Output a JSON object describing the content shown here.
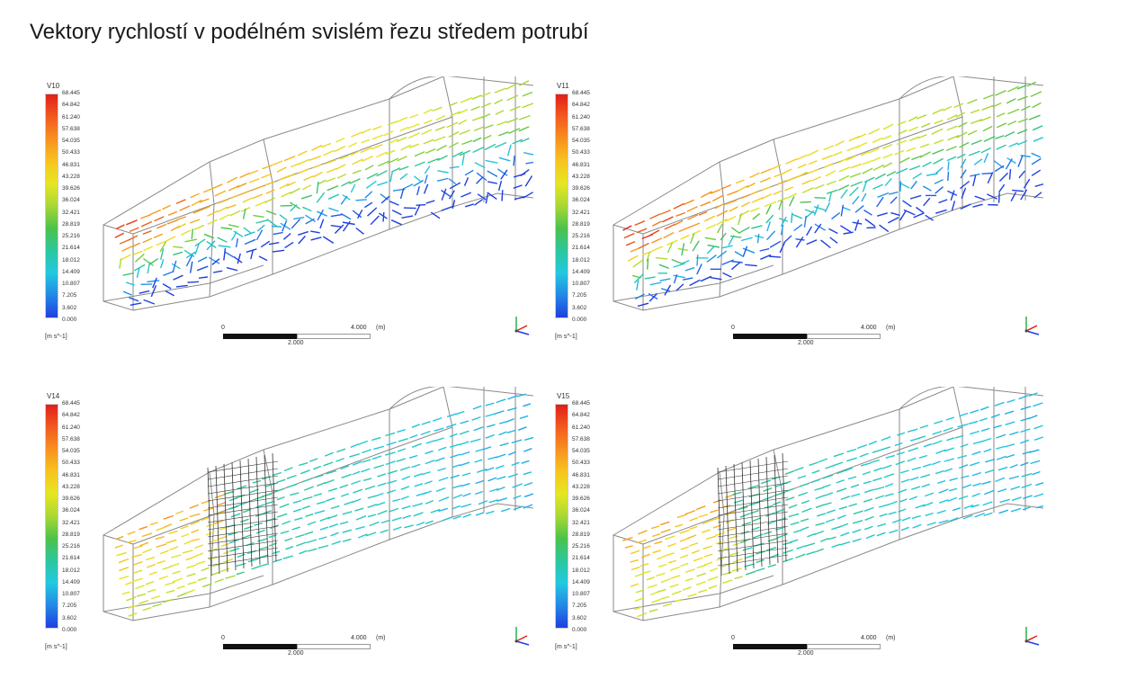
{
  "title": "Vektory rychlostí v podélném svislém řezu středem potrubí",
  "legend": {
    "values": [
      "68.445",
      "64.842",
      "61.240",
      "57.638",
      "54.035",
      "50.433",
      "46.831",
      "43.228",
      "39.626",
      "36.024",
      "32.421",
      "28.819",
      "25.216",
      "21.614",
      "18.012",
      "14.409",
      "10.807",
      "7.205",
      "3.602",
      "0.000"
    ],
    "unit": "[m s^-1]"
  },
  "scale": {
    "zero": "0",
    "max": "4.000",
    "unit": "(m)",
    "mid": "2.000"
  },
  "panels": [
    {
      "variable": "V10",
      "screen": false,
      "flow": "separated"
    },
    {
      "variable": "V11",
      "screen": false,
      "flow": "separated"
    },
    {
      "variable": "V14",
      "screen": true,
      "flow": "uniform"
    },
    {
      "variable": "V15",
      "screen": true,
      "flow": "uniform"
    }
  ],
  "colors": {
    "max": "#e0201b",
    "mid": "#4cc24a",
    "min": "#1f3fe0"
  },
  "icons": {
    "axis_triad": "xyz-axes-icon"
  }
}
